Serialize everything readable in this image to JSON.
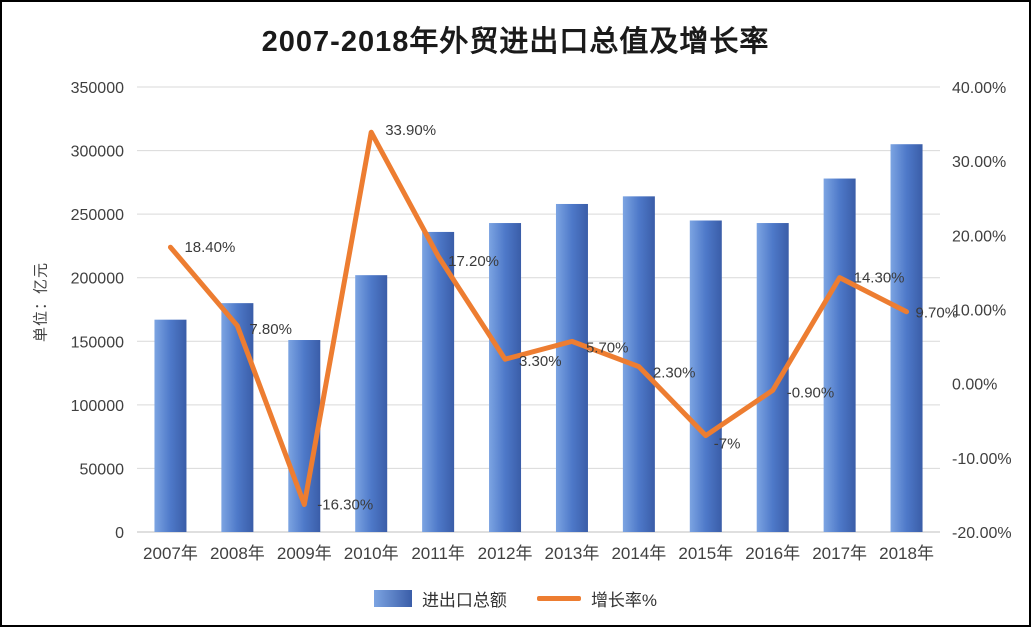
{
  "title": "2007-2018年外贸进出口总值及增长率",
  "y_axis_title": "单位：亿元",
  "legend": [
    {
      "label": "进出口总额",
      "type": "bar",
      "color": "#4E79C9"
    },
    {
      "label": "增长率%",
      "type": "line",
      "color": "#ED7D31"
    }
  ],
  "colors": {
    "bar_light": "#7CA4E2",
    "bar_mid": "#4E79C9",
    "bar_dark": "#3A5DA8",
    "line": "#ED7D31",
    "grid_line": "#D9D9D9",
    "axis_line": "#BFBFBF",
    "axis_text": "#404040",
    "label_text": "#3B3B3B",
    "title_text": "#1A1A1A",
    "background": "#FFFFFF",
    "frame_border": "#000000"
  },
  "chart_data": {
    "type": "bar+line",
    "title": "2007-2018年外贸进出口总值及增长率",
    "categories": [
      "2007年",
      "2008年",
      "2009年",
      "2010年",
      "2011年",
      "2012年",
      "2013年",
      "2014年",
      "2015年",
      "2016年",
      "2017年",
      "2018年"
    ],
    "series": [
      {
        "name": "进出口总额",
        "type": "bar",
        "axis": "left",
        "unit": "亿元",
        "values": [
          167000,
          180000,
          151000,
          202000,
          236000,
          243000,
          258000,
          264000,
          245000,
          243000,
          278000,
          305000
        ]
      },
      {
        "name": "增长率%",
        "type": "line",
        "axis": "right",
        "values": [
          18.4,
          7.8,
          -16.3,
          33.9,
          17.2,
          3.3,
          5.7,
          2.3,
          -7,
          -0.9,
          14.3,
          9.7
        ],
        "labels": [
          "18.40%",
          "7.80%",
          "-16.30%",
          "33.90%",
          "17.20%",
          "3.30%",
          "5.70%",
          "2.30%",
          "-7%",
          "-0.90%",
          "14.30%",
          "9.70%"
        ]
      }
    ],
    "left_axis": {
      "min": 0,
      "max": 350000,
      "step": 50000,
      "tick_labels": [
        "0",
        "50000",
        "100000",
        "150000",
        "200000",
        "250000",
        "300000",
        "350000"
      ]
    },
    "right_axis": {
      "min": -20,
      "max": 40,
      "step": 10,
      "tick_labels": [
        "-20.00%",
        "-10.00%",
        "0.00%",
        "10.00%",
        "20.00%",
        "30.00%",
        "40.00%"
      ]
    },
    "grid": "horizontal",
    "legend_position": "bottom"
  }
}
